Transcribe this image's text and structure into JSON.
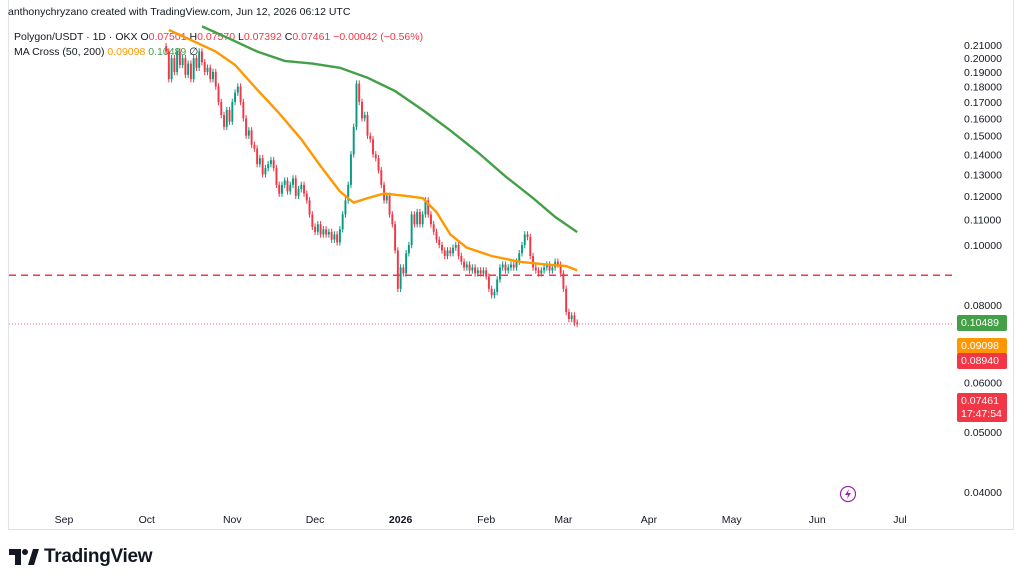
{
  "header": {
    "text": "anthonychryzano created with TradingView.com, Jun 12, 2026 06:12 UTC"
  },
  "legend": {
    "symbol": "Polygon/USDT · 1D · OKX",
    "o_label": "O",
    "o_value": "0.07501",
    "h_label": "H",
    "h_value": "0.07570",
    "l_label": "L",
    "l_value": "0.07392",
    "c_label": "C",
    "c_value": "0.07461",
    "change": "−0.00042 (−0.56%)",
    "indicator": "MA Cross (50, 200)",
    "ma_fast": "0.09098",
    "ma_slow": "0.10489",
    "extra": "∅"
  },
  "brand": {
    "name": "TradingView"
  },
  "colors": {
    "candle_up": "#089981",
    "candle_down": "#f23645",
    "ma_fast": "#ff9800",
    "ma_slow": "#43a047",
    "level": "#f23645"
  },
  "chart_data": {
    "type": "candlestick",
    "symbol": "Polygon/USDT",
    "interval": "1D",
    "exchange": "OKX",
    "y_ticks": [
      "0.21000",
      "0.20000",
      "0.19000",
      "0.18000",
      "0.17000",
      "0.16000",
      "0.15000",
      "0.14000",
      "0.13000",
      "0.12000",
      "0.11000",
      "0.10000",
      "0.08000",
      "0.06000",
      "0.05000",
      "0.04000"
    ],
    "x_ticks": [
      {
        "label": "Sep",
        "day": 0
      },
      {
        "label": "Oct",
        "day": 30
      },
      {
        "label": "Nov",
        "day": 61
      },
      {
        "label": "Dec",
        "day": 91
      },
      {
        "label": "2026",
        "day": 122,
        "bold": true
      },
      {
        "label": "Feb",
        "day": 153
      },
      {
        "label": "Mar",
        "day": 181
      },
      {
        "label": "Apr",
        "day": 212
      },
      {
        "label": "May",
        "day": 242
      },
      {
        "label": "Jun",
        "day": 273
      },
      {
        "label": "Jul",
        "day": 303
      }
    ],
    "price_labels": {
      "ma_slow": "0.10489",
      "ma_fast": "0.09098",
      "level": "0.08940",
      "last": "0.07461",
      "countdown": "17:47:54"
    },
    "horizontal_level": 0.0894,
    "price_points": [
      [
        37,
        0.205
      ],
      [
        38,
        0.185
      ],
      [
        39,
        0.2
      ],
      [
        40,
        0.19
      ],
      [
        41,
        0.205
      ],
      [
        42,
        0.195
      ],
      [
        43,
        0.2
      ],
      [
        44,
        0.188
      ],
      [
        45,
        0.196
      ],
      [
        46,
        0.185
      ],
      [
        47,
        0.2
      ],
      [
        48,
        0.193
      ],
      [
        49,
        0.205
      ],
      [
        50,
        0.197
      ],
      [
        51,
        0.19
      ],
      [
        52,
        0.193
      ],
      [
        53,
        0.185
      ],
      [
        54,
        0.19
      ],
      [
        55,
        0.18
      ],
      [
        56,
        0.17
      ],
      [
        57,
        0.162
      ],
      [
        58,
        0.155
      ],
      [
        59,
        0.165
      ],
      [
        60,
        0.158
      ],
      [
        61,
        0.17
      ],
      [
        62,
        0.176
      ],
      [
        63,
        0.18
      ],
      [
        64,
        0.17
      ],
      [
        65,
        0.16
      ],
      [
        66,
        0.15
      ],
      [
        67,
        0.153
      ],
      [
        68,
        0.145
      ],
      [
        69,
        0.143
      ],
      [
        70,
        0.135
      ],
      [
        71,
        0.138
      ],
      [
        72,
        0.13
      ],
      [
        73,
        0.133
      ],
      [
        74,
        0.135
      ],
      [
        75,
        0.137
      ],
      [
        76,
        0.133
      ],
      [
        77,
        0.125
      ],
      [
        78,
        0.121
      ],
      [
        79,
        0.125
      ],
      [
        80,
        0.127
      ],
      [
        81,
        0.122
      ],
      [
        82,
        0.125
      ],
      [
        83,
        0.128
      ],
      [
        84,
        0.12
      ],
      [
        85,
        0.123
      ],
      [
        86,
        0.125
      ],
      [
        87,
        0.121
      ],
      [
        88,
        0.118
      ],
      [
        89,
        0.112
      ],
      [
        90,
        0.107
      ],
      [
        91,
        0.105
      ],
      [
        92,
        0.108
      ],
      [
        93,
        0.104
      ],
      [
        94,
        0.106
      ],
      [
        95,
        0.104
      ],
      [
        96,
        0.105
      ],
      [
        97,
        0.102
      ],
      [
        98,
        0.104
      ],
      [
        99,
        0.101
      ],
      [
        100,
        0.106
      ],
      [
        101,
        0.112
      ],
      [
        102,
        0.118
      ],
      [
        103,
        0.125
      ],
      [
        104,
        0.14
      ],
      [
        105,
        0.155
      ],
      [
        106,
        0.182
      ],
      [
        107,
        0.17
      ],
      [
        108,
        0.16
      ],
      [
        109,
        0.162
      ],
      [
        110,
        0.15
      ],
      [
        111,
        0.148
      ],
      [
        112,
        0.14
      ],
      [
        113,
        0.138
      ],
      [
        114,
        0.132
      ],
      [
        115,
        0.125
      ],
      [
        116,
        0.118
      ],
      [
        117,
        0.12
      ],
      [
        118,
        0.112
      ],
      [
        119,
        0.108
      ],
      [
        120,
        0.098
      ],
      [
        121,
        0.085
      ],
      [
        122,
        0.092
      ],
      [
        123,
        0.09
      ],
      [
        124,
        0.097
      ],
      [
        125,
        0.1
      ],
      [
        126,
        0.112
      ],
      [
        127,
        0.108
      ],
      [
        128,
        0.113
      ],
      [
        129,
        0.108
      ],
      [
        130,
        0.112
      ],
      [
        131,
        0.118
      ],
      [
        132,
        0.112
      ],
      [
        133,
        0.108
      ],
      [
        134,
        0.105
      ],
      [
        135,
        0.102
      ],
      [
        136,
        0.1
      ],
      [
        137,
        0.098
      ],
      [
        138,
        0.096
      ],
      [
        139,
        0.098
      ],
      [
        140,
        0.097
      ],
      [
        141,
        0.099
      ],
      [
        142,
        0.1
      ],
      [
        143,
        0.096
      ],
      [
        144,
        0.094
      ],
      [
        145,
        0.092
      ],
      [
        146,
        0.093
      ],
      [
        147,
        0.091
      ],
      [
        148,
        0.092
      ],
      [
        149,
        0.09
      ],
      [
        150,
        0.091
      ],
      [
        151,
        0.09
      ],
      [
        152,
        0.091
      ],
      [
        153,
        0.089
      ],
      [
        154,
        0.085
      ],
      [
        155,
        0.083
      ],
      [
        156,
        0.084
      ],
      [
        157,
        0.088
      ],
      [
        158,
        0.092
      ],
      [
        159,
        0.093
      ],
      [
        160,
        0.091
      ],
      [
        161,
        0.092
      ],
      [
        162,
        0.093
      ],
      [
        163,
        0.092
      ],
      [
        164,
        0.094
      ],
      [
        165,
        0.097
      ],
      [
        166,
        0.1
      ],
      [
        167,
        0.104
      ],
      [
        168,
        0.103
      ],
      [
        169,
        0.096
      ],
      [
        170,
        0.092
      ],
      [
        171,
        0.091
      ],
      [
        172,
        0.09
      ],
      [
        173,
        0.091
      ],
      [
        174,
        0.092
      ],
      [
        175,
        0.093
      ],
      [
        176,
        0.091
      ],
      [
        177,
        0.092
      ],
      [
        178,
        0.094
      ],
      [
        179,
        0.093
      ],
      [
        180,
        0.09
      ],
      [
        181,
        0.085
      ],
      [
        182,
        0.078
      ],
      [
        183,
        0.076
      ],
      [
        184,
        0.077
      ],
      [
        185,
        0.075
      ],
      [
        186,
        0.0746
      ]
    ],
    "ma_fast_points": [
      [
        38,
        0.222
      ],
      [
        45,
        0.215
      ],
      [
        55,
        0.205
      ],
      [
        62,
        0.195
      ],
      [
        70,
        0.178
      ],
      [
        78,
        0.163
      ],
      [
        86,
        0.148
      ],
      [
        93,
        0.134
      ],
      [
        100,
        0.122
      ],
      [
        105,
        0.117
      ],
      [
        110,
        0.119
      ],
      [
        116,
        0.121
      ],
      [
        124,
        0.12
      ],
      [
        130,
        0.119
      ],
      [
        135,
        0.113
      ],
      [
        140,
        0.104
      ],
      [
        146,
        0.099
      ],
      [
        155,
        0.096
      ],
      [
        165,
        0.094
      ],
      [
        175,
        0.093
      ],
      [
        182,
        0.0925
      ],
      [
        186,
        0.091
      ]
    ],
    "ma_slow_points": [
      [
        50,
        0.225
      ],
      [
        60,
        0.215
      ],
      [
        70,
        0.205
      ],
      [
        80,
        0.198
      ],
      [
        90,
        0.196
      ],
      [
        100,
        0.193
      ],
      [
        110,
        0.186
      ],
      [
        120,
        0.177
      ],
      [
        130,
        0.165
      ],
      [
        140,
        0.153
      ],
      [
        150,
        0.141
      ],
      [
        160,
        0.129
      ],
      [
        170,
        0.119
      ],
      [
        178,
        0.111
      ],
      [
        186,
        0.1049
      ]
    ]
  }
}
